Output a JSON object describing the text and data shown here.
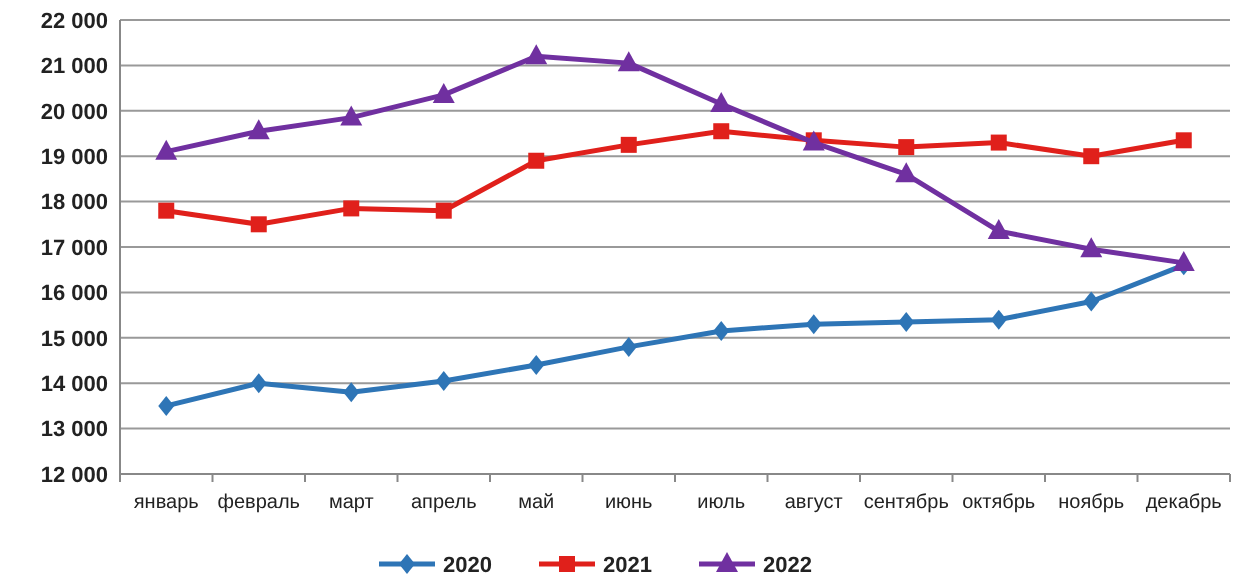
{
  "chart_data": {
    "type": "line",
    "categories": [
      "январь",
      "февраль",
      "март",
      "апрель",
      "май",
      "июнь",
      "июль",
      "август",
      "сентябрь",
      "октябрь",
      "ноябрь",
      "декабрь"
    ],
    "series": [
      {
        "name": "2020",
        "color": "#2e75b6",
        "marker": "diamond",
        "values": [
          13500,
          14000,
          13800,
          14050,
          14400,
          14800,
          15150,
          15300,
          15350,
          15400,
          15800,
          16600
        ]
      },
      {
        "name": "2021",
        "color": "#e0201b",
        "marker": "square",
        "values": [
          17800,
          17500,
          17850,
          17800,
          18900,
          19250,
          19550,
          19350,
          19200,
          19300,
          19000,
          19350
        ]
      },
      {
        "name": "2022",
        "color": "#7030a0",
        "marker": "triangle",
        "values": [
          19100,
          19550,
          19850,
          20350,
          21200,
          21050,
          20150,
          19300,
          18600,
          17350,
          16950,
          16650
        ]
      }
    ],
    "ylim": [
      12000,
      22000
    ],
    "yticks": [
      {
        "value": 12000,
        "label": "12 000"
      },
      {
        "value": 13000,
        "label": "13 000"
      },
      {
        "value": 14000,
        "label": "14 000"
      },
      {
        "value": 15000,
        "label": "15 000"
      },
      {
        "value": 16000,
        "label": "16 000"
      },
      {
        "value": 17000,
        "label": "17 000"
      },
      {
        "value": 18000,
        "label": "18 000"
      },
      {
        "value": 19000,
        "label": "19 000"
      },
      {
        "value": 20000,
        "label": "20 000"
      },
      {
        "value": 21000,
        "label": "21 000"
      },
      {
        "value": 22000,
        "label": "22 000"
      }
    ],
    "grid": "y",
    "legend": "bottom",
    "line_style": "solid"
  }
}
